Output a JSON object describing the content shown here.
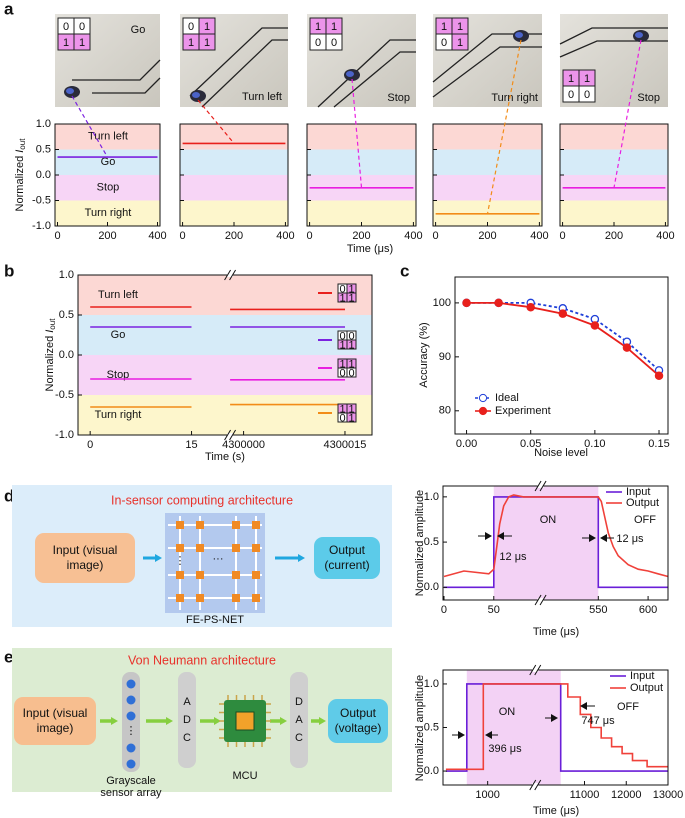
{
  "panel_labels": [
    "a",
    "b",
    "c",
    "d",
    "e"
  ],
  "photos": [
    {
      "label": "Go",
      "matrix": [
        [
          0,
          0
        ],
        [
          1,
          1
        ]
      ]
    },
    {
      "label": "Turn left",
      "matrix": [
        [
          0,
          1
        ],
        [
          1,
          1
        ]
      ]
    },
    {
      "label": "Stop",
      "matrix": [
        [
          1,
          1
        ],
        [
          0,
          0
        ]
      ]
    },
    {
      "label": "Turn right",
      "matrix": [
        [
          1,
          1
        ],
        [
          0,
          1
        ]
      ]
    },
    {
      "label": "Stop",
      "matrix": [
        [
          1,
          1
        ],
        [
          0,
          0
        ]
      ]
    }
  ],
  "diagrams": [
    {
      "title": "In-sensor computing architecture",
      "input": [
        "Input (visual",
        "image)"
      ],
      "output": [
        "Output",
        "(current)"
      ],
      "caption": "FE-PS-NET"
    },
    {
      "title": "Von Neumann architecture",
      "input": [
        "Input (visual",
        "image)"
      ],
      "output": [
        "Output",
        "(voltage)"
      ],
      "sensor_caption": [
        "Grayscale",
        "sensor array"
      ],
      "adc": [
        "A",
        "D",
        "C"
      ],
      "dac": [
        "D",
        "A",
        "C"
      ],
      "mcu": "MCU"
    }
  ],
  "chart_data": [
    {
      "type": "line",
      "ylabel_parts": [
        "Normalized ",
        "I",
        "out"
      ],
      "xlim": [
        -10,
        410
      ],
      "ylim": [
        -1,
        1
      ],
      "xticks": [
        0,
        200,
        400
      ],
      "yticks": [
        {
          "value": -1,
          "label": "-1.0"
        },
        {
          "value": -0.5,
          "label": "-0.5"
        },
        {
          "value": 0,
          "label": "0.0"
        },
        {
          "value": 0.5,
          "label": "0.5"
        },
        {
          "value": 1,
          "label": "1.0"
        }
      ],
      "bands": [
        {
          "label": "Turn left",
          "range": [
            0.5,
            1
          ],
          "color": "#fcd8d4"
        },
        {
          "label": "Go",
          "range": [
            0,
            0.5
          ],
          "color": "#d6ebf8"
        },
        {
          "label": "Stop",
          "range": [
            -0.5,
            0
          ],
          "color": "#f7d5f6"
        },
        {
          "label": "Turn right",
          "range": [
            -1,
            -0.5
          ],
          "color": "#fdf6cc"
        }
      ],
      "series": [
        {
          "color": "#7b22e0",
          "x": [
            0,
            400
          ],
          "values": [
            0.35,
            0.35
          ]
        }
      ]
    },
    {
      "type": "line",
      "xlim": [
        -10,
        410
      ],
      "ylim": [
        -1,
        1
      ],
      "xticks": [
        0,
        200,
        400
      ],
      "yticks": [
        -1,
        -0.5,
        0,
        0.5,
        1
      ],
      "bands": [
        {
          "range": [
            0.5,
            1
          ],
          "color": "#fcd8d4"
        },
        {
          "range": [
            0,
            0.5
          ],
          "color": "#d6ebf8"
        },
        {
          "range": [
            -0.5,
            0
          ],
          "color": "#f7d5f6"
        },
        {
          "range": [
            -1,
            -0.5
          ],
          "color": "#fdf6cc"
        }
      ],
      "series": [
        {
          "color": "#e8201c",
          "x": [
            0,
            400
          ],
          "values": [
            0.62,
            0.62
          ]
        }
      ]
    },
    {
      "type": "line",
      "xlabel": "Time (μs)",
      "xlim": [
        -10,
        410
      ],
      "ylim": [
        -1,
        1
      ],
      "xticks": [
        0,
        200,
        400
      ],
      "yticks": [
        -1,
        -0.5,
        0,
        0.5,
        1
      ],
      "bands": [
        {
          "range": [
            0.5,
            1
          ],
          "color": "#fcd8d4"
        },
        {
          "range": [
            0,
            0.5
          ],
          "color": "#d6ebf8"
        },
        {
          "range": [
            -0.5,
            0
          ],
          "color": "#f7d5f6"
        },
        {
          "range": [
            -1,
            -0.5
          ],
          "color": "#fdf6cc"
        }
      ],
      "series": [
        {
          "color": "#e81ee0",
          "x": [
            0,
            400
          ],
          "values": [
            -0.25,
            -0.25
          ]
        }
      ]
    },
    {
      "type": "line",
      "xlim": [
        -10,
        410
      ],
      "ylim": [
        -1,
        1
      ],
      "xticks": [
        0,
        200,
        400
      ],
      "yticks": [
        -1,
        -0.5,
        0,
        0.5,
        1
      ],
      "bands": [
        {
          "range": [
            0.5,
            1
          ],
          "color": "#fcd8d4"
        },
        {
          "range": [
            0,
            0.5
          ],
          "color": "#d6ebf8"
        },
        {
          "range": [
            -0.5,
            0
          ],
          "color": "#f7d5f6"
        },
        {
          "range": [
            -1,
            -0.5
          ],
          "color": "#fdf6cc"
        }
      ],
      "series": [
        {
          "color": "#f28c18",
          "x": [
            0,
            400
          ],
          "values": [
            -0.76,
            -0.76
          ]
        }
      ]
    },
    {
      "type": "line",
      "xlim": [
        -10,
        410
      ],
      "ylim": [
        -1,
        1
      ],
      "xticks": [
        0,
        200,
        400
      ],
      "yticks": [
        -1,
        -0.5,
        0,
        0.5,
        1
      ],
      "bands": [
        {
          "range": [
            0.5,
            1
          ],
          "color": "#fcd8d4"
        },
        {
          "range": [
            0,
            0.5
          ],
          "color": "#d6ebf8"
        },
        {
          "range": [
            -0.5,
            0
          ],
          "color": "#f7d5f6"
        },
        {
          "range": [
            -1,
            -0.5
          ],
          "color": "#fdf6cc"
        }
      ],
      "series": [
        {
          "color": "#e81ee0",
          "x": [
            0,
            400
          ],
          "values": [
            -0.25,
            -0.25
          ]
        }
      ]
    },
    {
      "type": "line",
      "ylabel_parts": [
        "Normalized ",
        "I",
        "out"
      ],
      "xlabel": "Time (s)",
      "xlim": [
        [
          -1.8,
          20.7
        ],
        [
          4299998,
          4300019
        ]
      ],
      "ylim": [
        -1,
        1
      ],
      "xticks": [
        0,
        15,
        4300000,
        4300015
      ],
      "yticks": [
        {
          "value": -1,
          "label": "-1.0"
        },
        {
          "value": -0.5,
          "label": "-0.5"
        },
        {
          "value": 0,
          "label": "0.0"
        },
        {
          "value": 0.5,
          "label": "0.5"
        },
        {
          "value": 1,
          "label": "1.0"
        }
      ],
      "bands": [
        {
          "label": "Turn left",
          "range": [
            0.5,
            1
          ],
          "color": "#fcd8d4"
        },
        {
          "label": "Go",
          "range": [
            0,
            0.5
          ],
          "color": "#d6ebf8"
        },
        {
          "label": "Stop",
          "range": [
            -0.5,
            0
          ],
          "color": "#f7d5f6"
        },
        {
          "label": "Turn right",
          "range": [
            -1,
            -0.5
          ],
          "color": "#fdf6cc"
        }
      ],
      "series": [
        {
          "color": "#e8201c",
          "matrix": [
            [
              0,
              1
            ],
            [
              1,
              1
            ]
          ],
          "x": [
            0,
            15,
            null,
            4299998,
            4300015
          ],
          "values": [
            0.6,
            0.6,
            null,
            0.57,
            0.57
          ]
        },
        {
          "color": "#7b22e0",
          "matrix": [
            [
              0,
              0
            ],
            [
              1,
              1
            ]
          ],
          "x": [
            0,
            15,
            null,
            4299998,
            4300015
          ],
          "values": [
            0.35,
            0.35,
            null,
            0.35,
            0.35
          ]
        },
        {
          "color": "#e81ee0",
          "matrix": [
            [
              1,
              1
            ],
            [
              0,
              0
            ]
          ],
          "x": [
            0,
            15,
            null,
            4299998,
            4300015
          ],
          "values": [
            -0.3,
            -0.3,
            null,
            -0.31,
            -0.31
          ]
        },
        {
          "color": "#f28c18",
          "matrix": [
            [
              1,
              1
            ],
            [
              0,
              1
            ]
          ],
          "x": [
            0,
            15,
            null,
            4299998,
            4300015
          ],
          "values": [
            -0.65,
            -0.65,
            null,
            -0.62,
            -0.62
          ]
        }
      ]
    },
    {
      "type": "line",
      "ylabel": "Accuracy (%)",
      "xlabel": "Noise level",
      "xlim": [
        -0.009,
        0.157
      ],
      "ylim": [
        75.7,
        104.8
      ],
      "xticks": [
        {
          "value": 0,
          "label": "0.00"
        },
        {
          "value": 0.05,
          "label": "0.05"
        },
        {
          "value": 0.1,
          "label": "0.10"
        },
        {
          "value": 0.15,
          "label": "0.15"
        }
      ],
      "yticks": [
        80,
        90,
        100
      ],
      "legend": "lower left",
      "series": [
        {
          "name": "Ideal",
          "color": "#1f3fd8",
          "dashed": true,
          "marker": "open",
          "x": [
            0,
            0.025,
            0.05,
            0.075,
            0.1,
            0.125,
            0.15
          ],
          "values": [
            100,
            100,
            100,
            99,
            97,
            92.8,
            87.5
          ]
        },
        {
          "name": "Experiment",
          "color": "#e8201c",
          "marker": "filled",
          "x": [
            0,
            0.025,
            0.05,
            0.075,
            0.1,
            0.125,
            0.15
          ],
          "values": [
            100,
            100,
            99.2,
            98,
            95.8,
            91.7,
            86.5
          ]
        }
      ]
    },
    {
      "type": "line",
      "ylabel": "Normalized amplitude",
      "xlabel": "Time (μs)",
      "xlim": [
        [
          -1,
          97
        ],
        [
          492,
          620
        ]
      ],
      "ylim": [
        -0.14,
        1.12
      ],
      "xticks": [
        0,
        50,
        550,
        600
      ],
      "yticks": [
        {
          "value": 0,
          "label": "0.0"
        },
        {
          "value": 0.5,
          "label": "0.5"
        },
        {
          "value": 1,
          "label": "1.0"
        }
      ],
      "on_interval": [
        50,
        550
      ],
      "legend": "upper right",
      "annotations": [
        "ON",
        "OFF",
        "12 μs",
        "12 μs"
      ],
      "series": [
        {
          "name": "Input",
          "color": "#6a1fd8",
          "x": [
            0,
            50,
            50,
            97,
            null,
            492,
            550,
            550,
            620
          ],
          "values": [
            0,
            0,
            1,
            1,
            null,
            1,
            1,
            0,
            0
          ]
        },
        {
          "name": "Output",
          "color": "#f0413a",
          "x": [
            0,
            20,
            45,
            50,
            53,
            56,
            60,
            65,
            70,
            80,
            97,
            null,
            492,
            550,
            553,
            556,
            560,
            565,
            570,
            580,
            590,
            600,
            610,
            620
          ],
          "values": [
            0.12,
            0.18,
            0.15,
            0.2,
            0.45,
            0.7,
            0.9,
            1,
            1.02,
            1,
            1,
            null,
            1,
            1,
            0.95,
            0.8,
            0.6,
            0.45,
            0.35,
            0.25,
            0.2,
            0.18,
            0.15,
            0.12
          ]
        }
      ]
    },
    {
      "type": "line",
      "ylabel": "Normalized amplitude",
      "xlabel": "Time (μs)",
      "xlim": [
        [
          -70,
          2140
        ],
        [
          9820,
          13000
        ]
      ],
      "ylim": [
        -0.16,
        1.16
      ],
      "xticks": [
        1000,
        11000,
        12000,
        13000
      ],
      "yticks": [
        {
          "value": 0,
          "label": "0.0"
        },
        {
          "value": 0.5,
          "label": "0.5"
        },
        {
          "value": 1,
          "label": "1.0"
        }
      ],
      "on_interval": [
        500,
        10430
      ],
      "legend": "upper right",
      "annotations": [
        "ON",
        "OFF",
        "396 μs",
        "747 μs"
      ],
      "series": [
        {
          "name": "Input",
          "color": "#6a1fd8",
          "x": [
            0,
            500,
            500,
            2140,
            null,
            9820,
            10430,
            10430,
            13000
          ],
          "values": [
            0,
            0,
            1,
            1,
            null,
            1,
            1,
            0,
            0
          ]
        },
        {
          "name": "Output",
          "color": "#f0413a",
          "x": [
            0,
            896,
            896,
            2140,
            null,
            9820,
            10430,
            10600,
            10600,
            10900,
            10900,
            11150,
            11150,
            11400,
            11400,
            11650,
            11650,
            11900,
            11900,
            12150,
            12150,
            12500,
            12500,
            13000
          ],
          "values": [
            0.02,
            0.02,
            1,
            1,
            null,
            1,
            1,
            1,
            0.85,
            0.85,
            0.65,
            0.65,
            0.5,
            0.5,
            0.38,
            0.38,
            0.28,
            0.28,
            0.2,
            0.2,
            0.12,
            0.12,
            0.05,
            0.05
          ]
        }
      ]
    }
  ]
}
